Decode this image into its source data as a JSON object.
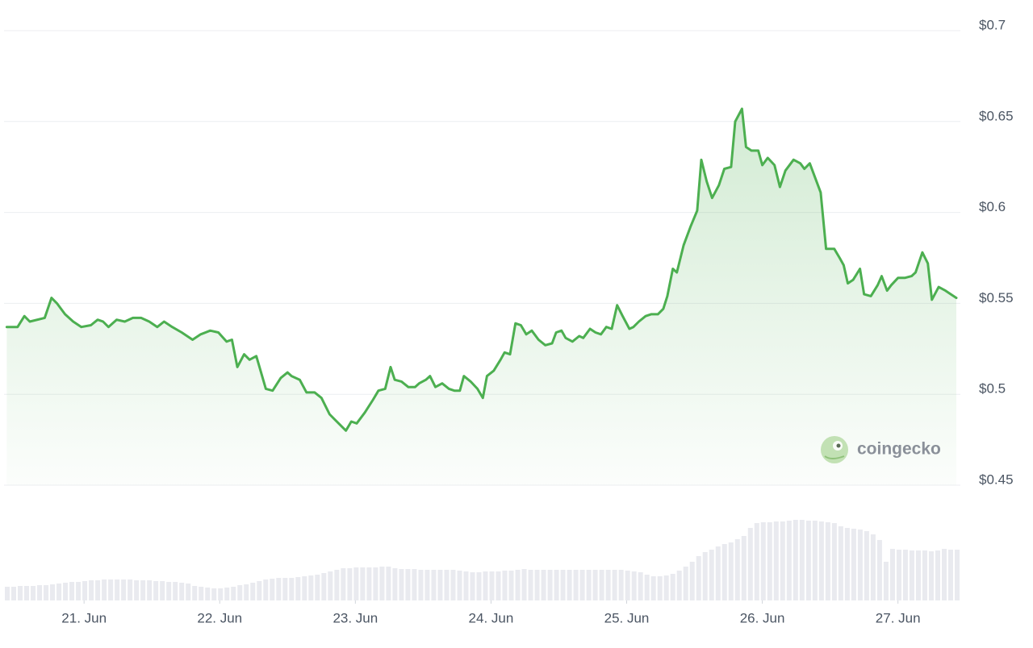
{
  "chart_data": {
    "type": "line",
    "x": [
      20.43,
      20.51,
      20.56,
      20.6,
      20.71,
      20.76,
      20.8,
      20.86,
      20.92,
      20.98,
      21.05,
      21.1,
      21.14,
      21.18,
      21.24,
      21.3,
      21.36,
      21.42,
      21.48,
      21.54,
      21.59,
      21.65,
      21.72,
      21.8,
      21.86,
      21.93,
      21.99,
      22.05,
      22.09,
      22.13,
      22.18,
      22.22,
      22.27,
      22.34,
      22.39,
      22.45,
      22.5,
      22.53,
      22.59,
      22.64,
      22.7,
      22.75,
      22.81,
      22.85,
      22.93,
      22.97,
      23.01,
      23.07,
      23.13,
      23.17,
      23.22,
      23.26,
      23.29,
      23.34,
      23.39,
      23.44,
      23.47,
      23.52,
      23.55,
      23.59,
      23.64,
      23.69,
      23.73,
      23.77,
      23.8,
      23.85,
      23.9,
      23.94,
      23.97,
      24.02,
      24.07,
      24.1,
      24.14,
      24.18,
      24.22,
      24.26,
      24.3,
      24.35,
      24.4,
      24.45,
      24.48,
      24.52,
      24.55,
      24.6,
      24.65,
      24.68,
      24.73,
      24.77,
      24.81,
      24.85,
      24.89,
      24.93,
      24.97,
      25.02,
      25.05,
      25.09,
      25.14,
      25.18,
      25.23,
      25.27,
      25.3,
      25.34,
      25.37,
      25.42,
      25.47,
      25.52,
      25.55,
      25.59,
      25.63,
      25.68,
      25.72,
      25.77,
      25.8,
      25.85,
      25.88,
      25.92,
      25.97,
      26.0,
      26.04,
      26.09,
      26.13,
      26.17,
      26.23,
      26.28,
      26.31,
      26.35,
      26.4,
      26.43,
      26.47,
      26.53,
      26.57,
      26.6,
      26.63,
      26.67,
      26.72,
      26.75,
      26.8,
      26.85,
      26.88,
      26.92,
      26.95,
      27.0,
      27.05,
      27.1,
      27.13,
      27.18,
      27.22,
      27.25,
      27.3,
      27.35,
      27.39,
      27.43
    ],
    "series": [
      {
        "color": "#4caf50",
        "values": [
          0.537,
          0.537,
          0.543,
          0.54,
          0.542,
          0.553,
          0.55,
          0.544,
          0.54,
          0.537,
          0.538,
          0.541,
          0.54,
          0.537,
          0.541,
          0.54,
          0.542,
          0.542,
          0.54,
          0.537,
          0.54,
          0.537,
          0.534,
          0.53,
          0.533,
          0.535,
          0.534,
          0.529,
          0.53,
          0.515,
          0.522,
          0.519,
          0.521,
          0.503,
          0.502,
          0.509,
          0.512,
          0.51,
          0.508,
          0.501,
          0.501,
          0.498,
          0.489,
          0.486,
          0.48,
          0.485,
          0.484,
          0.49,
          0.497,
          0.502,
          0.503,
          0.515,
          0.508,
          0.507,
          0.504,
          0.504,
          0.506,
          0.508,
          0.51,
          0.504,
          0.506,
          0.503,
          0.502,
          0.502,
          0.51,
          0.507,
          0.503,
          0.498,
          0.51,
          0.513,
          0.519,
          0.523,
          0.522,
          0.539,
          0.538,
          0.533,
          0.535,
          0.53,
          0.527,
          0.528,
          0.534,
          0.535,
          0.531,
          0.529,
          0.532,
          0.531,
          0.536,
          0.534,
          0.533,
          0.537,
          0.536,
          0.549,
          0.543,
          0.536,
          0.537,
          0.54,
          0.543,
          0.544,
          0.544,
          0.547,
          0.554,
          0.569,
          0.567,
          0.582,
          0.592,
          0.601,
          0.629,
          0.617,
          0.608,
          0.615,
          0.624,
          0.625,
          0.65,
          0.657,
          0.636,
          0.634,
          0.634,
          0.626,
          0.63,
          0.626,
          0.614,
          0.623,
          0.629,
          0.627,
          0.624,
          0.627,
          0.617,
          0.611,
          0.58,
          0.58,
          0.575,
          0.571,
          0.561,
          0.563,
          0.569,
          0.555,
          0.554,
          0.56,
          0.565,
          0.557,
          0.56,
          0.564,
          0.564,
          0.565,
          0.567,
          0.578,
          0.572,
          0.552,
          0.559,
          0.557,
          0.555,
          0.553
        ]
      }
    ],
    "xlim": [
      20.41,
      27.46
    ],
    "ylim": [
      0.45,
      0.7
    ],
    "yticks": [
      {
        "value": 0.45,
        "label": "$0.45"
      },
      {
        "value": 0.5,
        "label": "$0.5"
      },
      {
        "value": 0.55,
        "label": "$0.55"
      },
      {
        "value": 0.6,
        "label": "$0.6"
      },
      {
        "value": 0.65,
        "label": "$0.65"
      },
      {
        "value": 0.7,
        "label": "$0.7"
      }
    ],
    "xticks": [
      {
        "value": 21,
        "label": "21. Jun"
      },
      {
        "value": 22,
        "label": "22. Jun"
      },
      {
        "value": 23,
        "label": "23. Jun"
      },
      {
        "value": 24,
        "label": "24. Jun"
      },
      {
        "value": 25,
        "label": "25. Jun"
      },
      {
        "value": 26,
        "label": "26. Jun"
      },
      {
        "value": 27,
        "label": "27. Jun"
      }
    ],
    "grid": true,
    "area": true,
    "volume": {
      "color": "#e9eaef",
      "ylim": [
        0,
        100
      ],
      "values": [
        17,
        17,
        18,
        18,
        18,
        19,
        19,
        20,
        21,
        22,
        23,
        23,
        24,
        25,
        25,
        26,
        26,
        26,
        26,
        26,
        25,
        25,
        25,
        24,
        24,
        23,
        23,
        22,
        21,
        18,
        17,
        16,
        15,
        15,
        16,
        17,
        19,
        20,
        22,
        24,
        26,
        27,
        28,
        28,
        28,
        29,
        30,
        31,
        32,
        34,
        36,
        38,
        40,
        40,
        41,
        41,
        41,
        41,
        42,
        42,
        40,
        39,
        39,
        39,
        38,
        38,
        38,
        38,
        38,
        38,
        37,
        36,
        35,
        35,
        36,
        36,
        36,
        37,
        37,
        38,
        39,
        38,
        38,
        38,
        38,
        38,
        38,
        38,
        38,
        38,
        38,
        38,
        38,
        38,
        38,
        38,
        37,
        36,
        35,
        32,
        30,
        30,
        31,
        33,
        37,
        42,
        48,
        55,
        60,
        63,
        67,
        70,
        72,
        76,
        80,
        90,
        96,
        97,
        97,
        98,
        98,
        99,
        100,
        100,
        99,
        99,
        98,
        97,
        96,
        92,
        90,
        89,
        88,
        86,
        82,
        75,
        48,
        64,
        63,
        63,
        62,
        62,
        62,
        61,
        62,
        64,
        63,
        63
      ]
    },
    "brand": "coingecko"
  }
}
